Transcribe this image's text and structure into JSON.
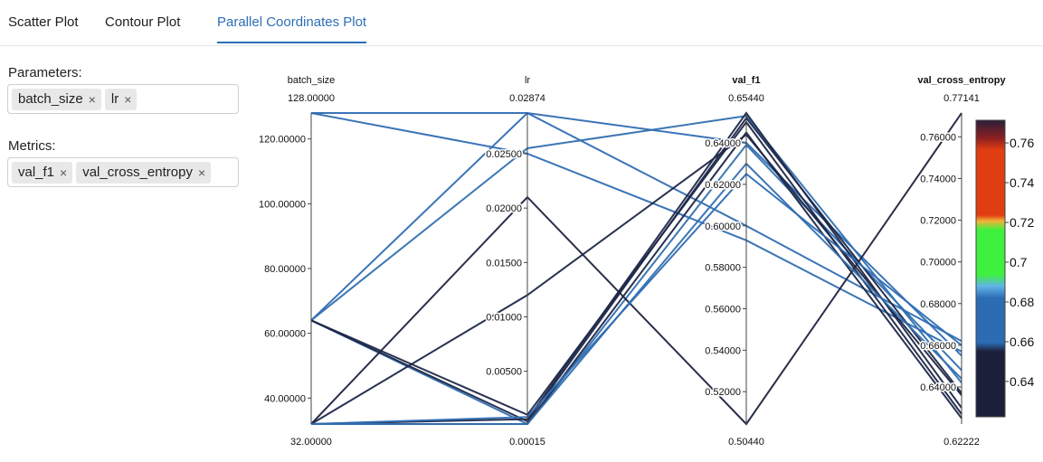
{
  "tabs": [
    {
      "label": "Scatter Plot",
      "active": false
    },
    {
      "label": "Contour Plot",
      "active": false
    },
    {
      "label": "Parallel Coordinates Plot",
      "active": true
    }
  ],
  "parameters": {
    "label": "Parameters:",
    "chips": [
      {
        "label": "batch_size",
        "remove": "×"
      },
      {
        "label": "lr",
        "remove": "×"
      }
    ]
  },
  "metrics": {
    "label": "Metrics:",
    "chips": [
      {
        "label": "val_f1",
        "remove": "×"
      },
      {
        "label": "val_cross_entropy",
        "remove": "×"
      }
    ]
  },
  "chart_data": {
    "type": "parallel_coordinates",
    "axes": [
      {
        "name": "batch_size",
        "min_label": "32.00000",
        "max_label": "128.00000",
        "min": 32,
        "max": 128,
        "ticks": [
          40,
          60,
          80,
          100,
          120
        ],
        "tick_labels": [
          "40.00000",
          "60.00000",
          "80.00000",
          "100.00000",
          "120.00000"
        ],
        "bold": false
      },
      {
        "name": "lr",
        "min_label": "0.00015",
        "max_label": "0.02874",
        "min": 0.00015,
        "max": 0.02874,
        "ticks": [
          0.005,
          0.01,
          0.015,
          0.02,
          0.025
        ],
        "tick_labels": [
          "0.00500",
          "0.01000",
          "0.01500",
          "0.02000",
          "0.02500"
        ],
        "bold": false
      },
      {
        "name": "val_f1",
        "min_label": "0.50440",
        "max_label": "0.65440",
        "min": 0.5044,
        "max": 0.6544,
        "ticks": [
          0.52,
          0.54,
          0.56,
          0.58,
          0.6,
          0.62,
          0.64
        ],
        "tick_labels": [
          "0.52000",
          "0.54000",
          "0.56000",
          "0.58000",
          "0.60000",
          "0.62000",
          "0.64000"
        ],
        "bold": true
      },
      {
        "name": "val_cross_entropy",
        "min_label": "0.62222",
        "max_label": "0.77141",
        "min": 0.62222,
        "max": 0.77141,
        "ticks": [
          0.64,
          0.66,
          0.68,
          0.7,
          0.72,
          0.74,
          0.76
        ],
        "tick_labels": [
          "0.64000",
          "0.66000",
          "0.68000",
          "0.70000",
          "0.72000",
          "0.74000",
          "0.76000"
        ],
        "bold": true
      }
    ],
    "lines": [
      [
        128,
        0.02874,
        0.6,
        0.662
      ],
      [
        128,
        0.025,
        0.593,
        0.657
      ],
      [
        64,
        0.02874,
        0.64,
        0.655
      ],
      [
        64,
        0.0255,
        0.653,
        0.642
      ],
      [
        64,
        0.00015,
        0.639,
        0.648
      ],
      [
        64,
        0.0004,
        0.652,
        0.637
      ],
      [
        64,
        0.001,
        0.65,
        0.627
      ],
      [
        32,
        0.021,
        0.5044,
        0.7714
      ],
      [
        32,
        0.012,
        0.644,
        0.636
      ],
      [
        32,
        0.00015,
        0.645,
        0.625
      ],
      [
        32,
        0.0006,
        0.6544,
        0.63
      ],
      [
        32,
        0.00015,
        0.63,
        0.644
      ],
      [
        32,
        0.0008,
        0.625,
        0.66
      ]
    ],
    "colorbar": {
      "metric": "val_cross_entropy",
      "ticks": [
        0.64,
        0.66,
        0.68,
        0.7,
        0.72,
        0.74,
        0.76
      ],
      "tick_labels": [
        "0.64",
        "0.66",
        "0.68",
        "0.7",
        "0.72",
        "0.74",
        "0.76"
      ],
      "colors": [
        "#1c1f3a",
        "#2b6cb4",
        "#60b3e8",
        "#3ef13e",
        "#f2b33a",
        "#e13d12",
        "#8b2020",
        "#2a1f3a"
      ]
    }
  }
}
